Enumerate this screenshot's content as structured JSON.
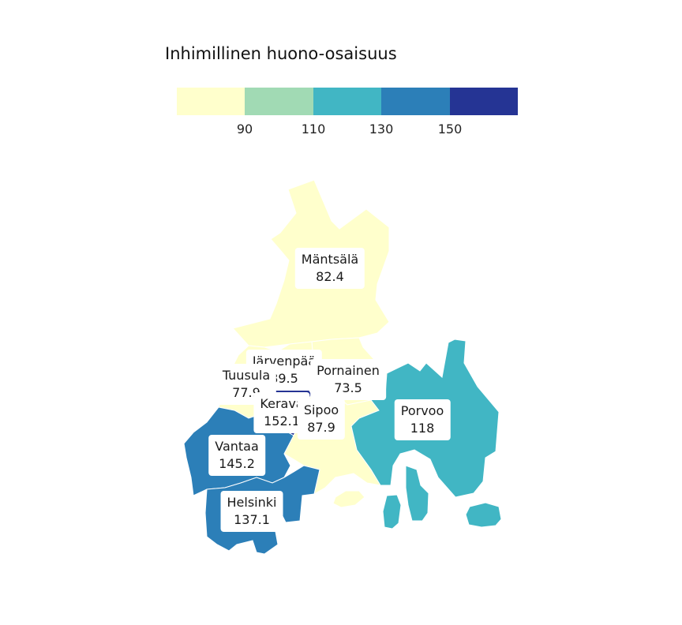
{
  "legend": {
    "title": "Inhimillinen huono-osaisuus",
    "colors": [
      "#ffffcc",
      "#a1dab4",
      "#41b6c4",
      "#2c7fb8",
      "#253494"
    ],
    "ticks": [
      "90",
      "110",
      "130",
      "150"
    ]
  },
  "municipalities": [
    {
      "name": "Mäntsälä",
      "value": "82.4",
      "fill": "#ffffcc"
    },
    {
      "name": "Järvenpää",
      "value": "89.5",
      "fill": "#ffffcc"
    },
    {
      "name": "Tuusula",
      "value": "77.9",
      "fill": "#ffffcc"
    },
    {
      "name": "Pornainen",
      "value": "73.5",
      "fill": "#ffffcc"
    },
    {
      "name": "Kerava",
      "value": "152.1",
      "fill": "#253494"
    },
    {
      "name": "Sipoo",
      "value": "87.9",
      "fill": "#ffffcc"
    },
    {
      "name": "Porvoo",
      "value": "118",
      "fill": "#41b6c4"
    },
    {
      "name": "Vantaa",
      "value": "145.2",
      "fill": "#2c7fb8"
    },
    {
      "name": "Helsinki",
      "value": "137.1",
      "fill": "#2c7fb8"
    }
  ]
}
